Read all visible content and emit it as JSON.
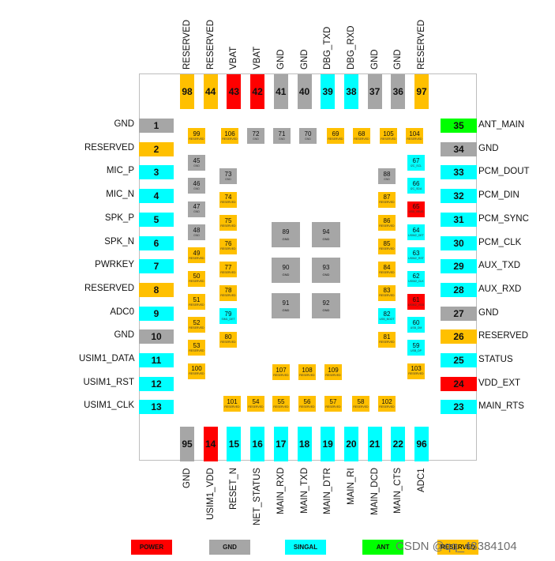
{
  "colors": {
    "POWER": "#ff0000",
    "GND": "#a6a6a6",
    "SIG": "#00ffff",
    "ANT": "#00ff00",
    "RES": "#ffc000"
  },
  "top_pins": [
    {
      "num": "98",
      "label": "RESERVED",
      "type": "RES"
    },
    {
      "num": "44",
      "label": "RESERVED",
      "type": "RES"
    },
    {
      "num": "43",
      "label": "VBAT",
      "type": "POWER"
    },
    {
      "num": "42",
      "label": "VBAT",
      "type": "POWER"
    },
    {
      "num": "41",
      "label": "GND",
      "type": "GND"
    },
    {
      "num": "40",
      "label": "GND",
      "type": "GND"
    },
    {
      "num": "39",
      "label": "DBG_TXD",
      "type": "SIG"
    },
    {
      "num": "38",
      "label": "DBG_RXD",
      "type": "SIG"
    },
    {
      "num": "37",
      "label": "GND",
      "type": "GND"
    },
    {
      "num": "36",
      "label": "GND",
      "type": "GND"
    },
    {
      "num": "97",
      "label": "RESERVED",
      "type": "RES"
    }
  ],
  "bottom_pins": [
    {
      "num": "95",
      "label": "GND",
      "type": "GND"
    },
    {
      "num": "14",
      "label": "USIM1_VDD",
      "type": "POWER"
    },
    {
      "num": "15",
      "label": "RESET_N",
      "type": "SIG"
    },
    {
      "num": "16",
      "label": "NET_STATUS",
      "type": "SIG"
    },
    {
      "num": "17",
      "label": "MAIN_RXD",
      "type": "SIG"
    },
    {
      "num": "18",
      "label": "MAIN_TXD",
      "type": "SIG"
    },
    {
      "num": "19",
      "label": "MAIN_DTR",
      "type": "SIG"
    },
    {
      "num": "20",
      "label": "MAIN_RI",
      "type": "SIG"
    },
    {
      "num": "21",
      "label": "MAIN_DCD",
      "type": "SIG"
    },
    {
      "num": "22",
      "label": "MAIN_CTS",
      "type": "SIG"
    },
    {
      "num": "96",
      "label": "ADC1",
      "type": "SIG"
    }
  ],
  "left_pins": [
    {
      "num": "1",
      "label": "GND",
      "type": "GND"
    },
    {
      "num": "2",
      "label": "RESERVED",
      "type": "RES"
    },
    {
      "num": "3",
      "label": "MIC_P",
      "type": "SIG"
    },
    {
      "num": "4",
      "label": "MIC_N",
      "type": "SIG"
    },
    {
      "num": "5",
      "label": "SPK_P",
      "type": "SIG"
    },
    {
      "num": "6",
      "label": "SPK_N",
      "type": "SIG"
    },
    {
      "num": "7",
      "label": "PWRKEY",
      "type": "SIG"
    },
    {
      "num": "8",
      "label": "RESERVED",
      "type": "RES"
    },
    {
      "num": "9",
      "label": "ADC0",
      "type": "SIG"
    },
    {
      "num": "10",
      "label": "GND",
      "type": "GND"
    },
    {
      "num": "11",
      "label": "USIM1_DATA",
      "type": "SIG"
    },
    {
      "num": "12",
      "label": "USIM1_RST",
      "type": "SIG"
    },
    {
      "num": "13",
      "label": "USIM1_CLK",
      "type": "SIG"
    }
  ],
  "right_pins": [
    {
      "num": "35",
      "label": "ANT_MAIN",
      "type": "ANT"
    },
    {
      "num": "34",
      "label": "GND",
      "type": "GND"
    },
    {
      "num": "33",
      "label": "PCM_DOUT",
      "type": "SIG"
    },
    {
      "num": "32",
      "label": "PCM_DIN",
      "type": "SIG"
    },
    {
      "num": "31",
      "label": "PCM_SYNC",
      "type": "SIG"
    },
    {
      "num": "30",
      "label": "PCM_CLK",
      "type": "SIG"
    },
    {
      "num": "29",
      "label": "AUX_TXD",
      "type": "SIG"
    },
    {
      "num": "28",
      "label": "AUX_RXD",
      "type": "SIG"
    },
    {
      "num": "27",
      "label": "GND",
      "type": "GND"
    },
    {
      "num": "26",
      "label": "RESERVED",
      "type": "RES"
    },
    {
      "num": "25",
      "label": "STATUS",
      "type": "SIG"
    },
    {
      "num": "24",
      "label": "VDD_EXT",
      "type": "POWER"
    },
    {
      "num": "23",
      "label": "MAIN_RTS",
      "type": "SIG"
    }
  ],
  "inner_top": [
    {
      "num": "99",
      "sub": "RESERVED",
      "type": "RES"
    },
    {
      "num": "106",
      "sub": "RESERVED",
      "type": "RES"
    },
    {
      "num": "72",
      "sub": "GND",
      "type": "GND"
    },
    {
      "num": "71",
      "sub": "GND",
      "type": "GND"
    },
    {
      "num": "70",
      "sub": "GND",
      "type": "GND"
    },
    {
      "num": "69",
      "sub": "RESERVED",
      "type": "RES"
    },
    {
      "num": "68",
      "sub": "RESERVED",
      "type": "RES"
    },
    {
      "num": "105",
      "sub": "RESERVED",
      "type": "RES"
    },
    {
      "num": "104",
      "sub": "RESERVED",
      "type": "RES"
    }
  ],
  "inner_left": [
    {
      "num": "45",
      "sub": "GND",
      "type": "GND"
    },
    {
      "num": "46",
      "sub": "GND",
      "type": "GND"
    },
    {
      "num": "47",
      "sub": "GND",
      "type": "GND"
    },
    {
      "num": "48",
      "sub": "GND",
      "type": "GND"
    },
    {
      "num": "49",
      "sub": "RESERVED",
      "type": "RES"
    },
    {
      "num": "50",
      "sub": "RESERVED",
      "type": "RES"
    },
    {
      "num": "51",
      "sub": "RESERVED",
      "type": "RES"
    },
    {
      "num": "52",
      "sub": "RESERVED",
      "type": "RES"
    },
    {
      "num": "53",
      "sub": "RESERVED",
      "type": "RES"
    },
    {
      "num": "100",
      "sub": "RESERVED",
      "type": "RES"
    }
  ],
  "inner_left2": [
    {
      "num": "73",
      "sub": "GND",
      "type": "GND"
    },
    {
      "num": "74",
      "sub": "RESERVED",
      "type": "RES"
    },
    {
      "num": "75",
      "sub": "RESERVED",
      "type": "RES"
    },
    {
      "num": "76",
      "sub": "RESERVED",
      "type": "RES"
    },
    {
      "num": "77",
      "sub": "RESERVED",
      "type": "RES"
    },
    {
      "num": "78",
      "sub": "RESERVED",
      "type": "RES"
    },
    {
      "num": "79",
      "sub": "SIM1_DET",
      "type": "SIG"
    },
    {
      "num": "80",
      "sub": "RESERVED",
      "type": "RES"
    }
  ],
  "inner_right2": [
    {
      "num": "88",
      "sub": "GND",
      "type": "GND"
    },
    {
      "num": "87",
      "sub": "RESERVED",
      "type": "RES"
    },
    {
      "num": "86",
      "sub": "RESERVED",
      "type": "RES"
    },
    {
      "num": "85",
      "sub": "RESERVED",
      "type": "RES"
    },
    {
      "num": "84",
      "sub": "RESERVED",
      "type": "RES"
    },
    {
      "num": "83",
      "sub": "RESERVED",
      "type": "RES"
    },
    {
      "num": "82",
      "sub": "USB_BOOT",
      "type": "SIG"
    },
    {
      "num": "81",
      "sub": "RESERVED",
      "type": "RES"
    }
  ],
  "inner_right": [
    {
      "num": "67",
      "sub": "I2C_SCL",
      "type": "SIG"
    },
    {
      "num": "66",
      "sub": "I2C_SDA",
      "type": "SIG"
    },
    {
      "num": "65",
      "sub": "USB_VBUS",
      "type": "POWER"
    },
    {
      "num": "64",
      "sub": "USIM2_DET",
      "type": "SIG"
    },
    {
      "num": "63",
      "sub": "USIM2_RST",
      "type": "SIG"
    },
    {
      "num": "62",
      "sub": "USIM2_CLK",
      "type": "SIG"
    },
    {
      "num": "61",
      "sub": "USIM2_VDD",
      "type": "POWER"
    },
    {
      "num": "60",
      "sub": "USB_DM",
      "type": "SIG"
    },
    {
      "num": "59",
      "sub": "USB_DP",
      "type": "SIG"
    },
    {
      "num": "103",
      "sub": "RESERVED",
      "type": "RES"
    }
  ],
  "inner_bottom2": [
    {
      "num": "107",
      "sub": "RESERVED",
      "type": "RES"
    },
    {
      "num": "108",
      "sub": "RESERVED",
      "type": "RES"
    },
    {
      "num": "109",
      "sub": "RESERVED",
      "type": "RES"
    }
  ],
  "inner_bottom": [
    {
      "num": "101",
      "sub": "RESERVED",
      "type": "RES"
    },
    {
      "num": "54",
      "sub": "RESERVED",
      "type": "RES"
    },
    {
      "num": "55",
      "sub": "RESERVED",
      "type": "RES"
    },
    {
      "num": "56",
      "sub": "RESERVED",
      "type": "RES"
    },
    {
      "num": "57",
      "sub": "RESERVED",
      "type": "RES"
    },
    {
      "num": "58",
      "sub": "RESERVED",
      "type": "RES"
    },
    {
      "num": "102",
      "sub": "RESERVED",
      "type": "RES"
    }
  ],
  "center": [
    {
      "num": "89",
      "sub": "GND",
      "type": "GND"
    },
    {
      "num": "94",
      "sub": "GND",
      "type": "GND"
    },
    {
      "num": "90",
      "sub": "GND",
      "type": "GND"
    },
    {
      "num": "93",
      "sub": "GND",
      "type": "GND"
    },
    {
      "num": "91",
      "sub": "GND",
      "type": "GND"
    },
    {
      "num": "92",
      "sub": "GND",
      "type": "GND"
    }
  ],
  "legend": [
    {
      "label": "POWER",
      "type": "POWER"
    },
    {
      "label": "GND",
      "type": "GND"
    },
    {
      "label": "SINGAL",
      "type": "SIG"
    },
    {
      "label": "ANT",
      "type": "ANT"
    },
    {
      "label": "RESERVED",
      "type": "RES"
    }
  ],
  "watermark": "CSDN @qq_48384104"
}
